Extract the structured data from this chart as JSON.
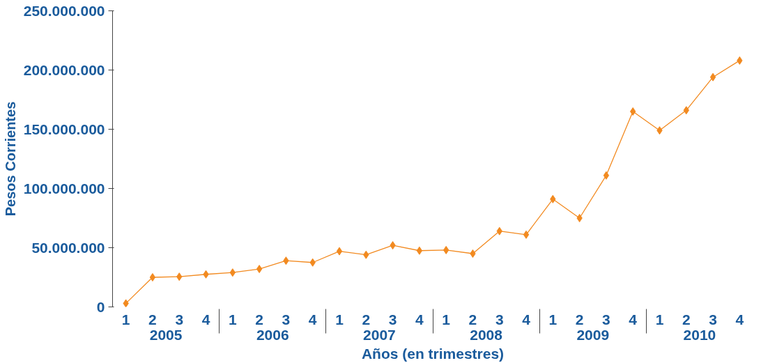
{
  "chart_data": {
    "type": "line",
    "xlabel": "Años (en trimestres)",
    "ylabel": "Pesos Corrientes",
    "categories": [
      "1",
      "2",
      "3",
      "4",
      "1",
      "2",
      "3",
      "4",
      "1",
      "2",
      "3",
      "4",
      "1",
      "2",
      "3",
      "4",
      "1",
      "2",
      "3",
      "4",
      "1",
      "2",
      "3",
      "4"
    ],
    "annotations": [
      "2005",
      "2006",
      "2007",
      "2008",
      "2009",
      "2010"
    ],
    "series": [
      {
        "color": "#f28a20",
        "values": [
          3000000,
          25000000,
          25500000,
          27500000,
          29000000,
          32000000,
          39000000,
          37500000,
          47000000,
          44000000,
          52000000,
          47500000,
          48000000,
          45000000,
          64000000,
          61000000,
          91000000,
          75000000,
          111000000,
          165000000,
          149000000,
          166000000,
          194000000,
          208000000
        ]
      }
    ],
    "ylim": [
      0,
      250000000
    ],
    "yticks": [
      {
        "value": 0,
        "label": "0"
      },
      {
        "value": 50000000,
        "label": "50.000.000"
      },
      {
        "value": 100000000,
        "label": "100.000.000"
      },
      {
        "value": 150000000,
        "label": "150.000.000"
      },
      {
        "value": 200000000,
        "label": "200.000.000"
      },
      {
        "value": 250000000,
        "label": "250.000.000"
      }
    ],
    "grid": false,
    "marker": "diamond",
    "line_style": "solid"
  }
}
